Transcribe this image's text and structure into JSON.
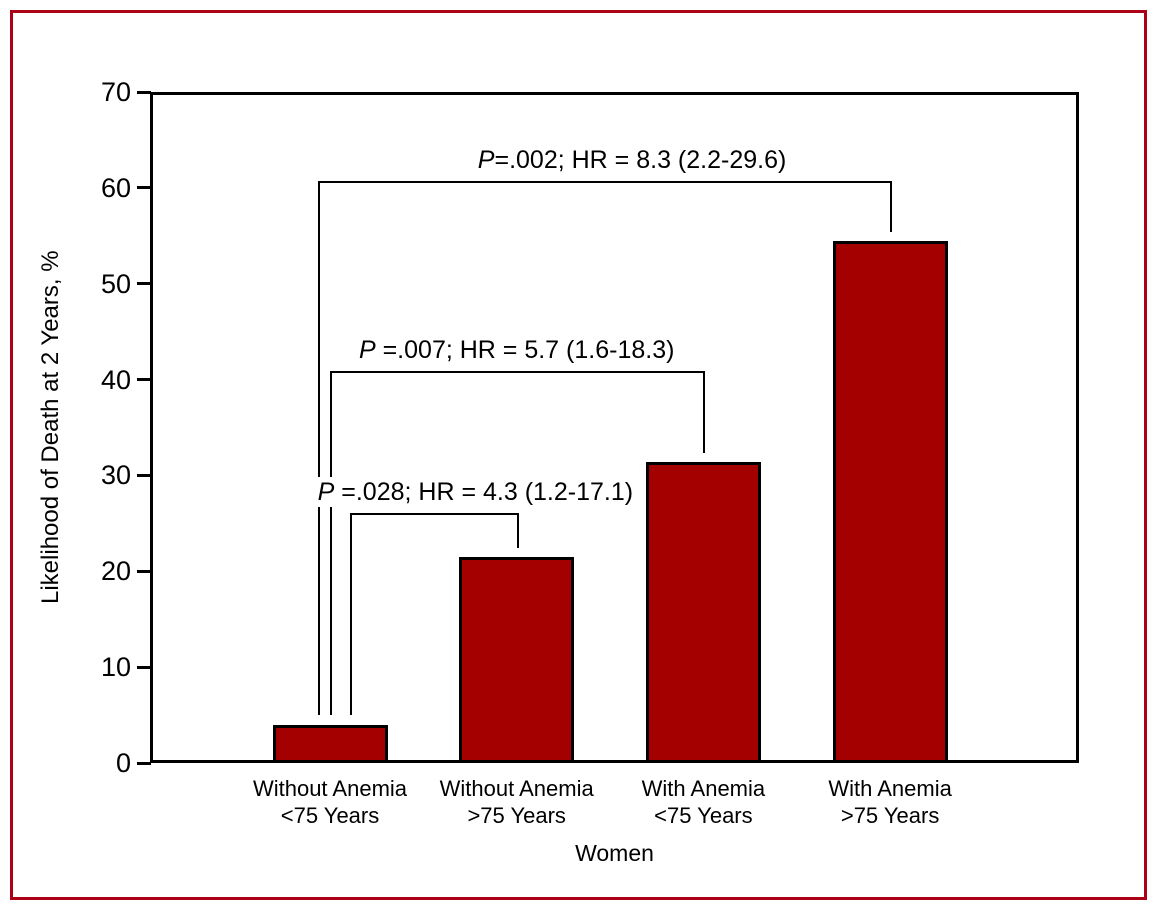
{
  "figure": {
    "frame_color": "#ab0016",
    "bar_color": "#a50000",
    "line_color": "#000000"
  },
  "chart_data": {
    "type": "bar",
    "title": "",
    "xlabel": "Women",
    "ylabel": "Likelihood of Death at 2 Years, %",
    "ylim": [
      0,
      70
    ],
    "yticks": [
      0,
      10,
      20,
      30,
      40,
      50,
      60,
      70
    ],
    "grid": "off",
    "legend": "none",
    "categories": [
      [
        "Without Anemia",
        "<75 Years"
      ],
      [
        "Without Anemia",
        ">75 Years"
      ],
      [
        "With Anemia",
        "<75 Years"
      ],
      [
        "With Anemia",
        ">75 Years"
      ]
    ],
    "values": [
      4,
      21.5,
      31.4,
      54.5
    ],
    "comparisons": [
      {
        "from": 0,
        "to": 1,
        "level": 26.1,
        "p_label": "P",
        "stats": " =.028; HR = 4.3 (1.2-17.1)"
      },
      {
        "from": 0,
        "to": 2,
        "level": 40.9,
        "p_label": "P",
        "stats": " =.007; HR = 5.7 (1.6-18.3)"
      },
      {
        "from": 0,
        "to": 3,
        "level": 60.7,
        "p_label": "P",
        "stats": "=.002; HR = 8.3 (2.2-29.6)"
      }
    ]
  }
}
